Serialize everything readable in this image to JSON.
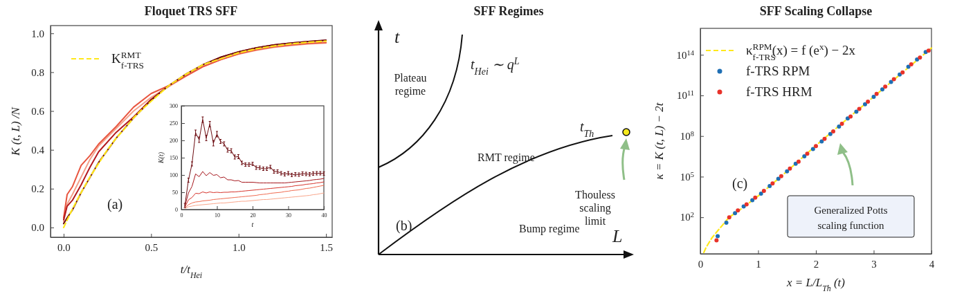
{
  "chart_data": [
    {
      "type": "line",
      "title": "Floquet TRS SFF",
      "xlabel": "t/t$_{Hei}$",
      "ylabel": "K (t, L) /N",
      "xlim": [
        -0.075,
        1.535
      ],
      "ylim": [
        -0.05,
        1.04
      ],
      "xticks": [
        {
          "value": 0,
          "label": "0.0"
        },
        {
          "value": 0.5,
          "label": "0.5"
        },
        {
          "value": 1,
          "label": "1.0"
        },
        {
          "value": 1.5,
          "label": "1.5"
        }
      ],
      "yticks": [
        {
          "value": 0,
          "label": "0.0"
        },
        {
          "value": 0.2,
          "label": "0.2"
        },
        {
          "value": 0.4,
          "label": "0.4"
        },
        {
          "value": 0.6,
          "label": "0.6"
        },
        {
          "value": 0.8,
          "label": "0.8"
        },
        {
          "value": 1,
          "label": "1.0"
        }
      ],
      "legend": "top left",
      "marker": "none",
      "grid": false,
      "annotations": [
        "(a)"
      ],
      "series": [
        {
          "color": "#f4a08a",
          "x": [
            0,
            0.02,
            0.05,
            0.1,
            0.15,
            0.2,
            0.3,
            0.4,
            0.5,
            0.6,
            0.7,
            0.8,
            0.9,
            1.0,
            1.1,
            1.2,
            1.3,
            1.4,
            1.5
          ],
          "values": [
            0.03,
            0.12,
            0.17,
            0.26,
            0.35,
            0.42,
            0.51,
            0.6,
            0.67,
            0.725,
            0.78,
            0.83,
            0.865,
            0.893,
            0.913,
            0.928,
            0.938,
            0.946,
            0.95
          ]
        },
        {
          "color": "#e8553f",
          "x": [
            0,
            0.02,
            0.05,
            0.1,
            0.15,
            0.2,
            0.3,
            0.4,
            0.5,
            0.6,
            0.7,
            0.8,
            0.9,
            1.0,
            1.1,
            1.2,
            1.3,
            1.4,
            1.5
          ],
          "values": [
            0.05,
            0.17,
            0.21,
            0.32,
            0.37,
            0.43,
            0.52,
            0.62,
            0.69,
            0.73,
            0.78,
            0.83,
            0.865,
            0.895,
            0.915,
            0.93,
            0.94,
            0.948,
            0.953
          ]
        },
        {
          "color": "#b3191e",
          "x": [
            0,
            0.02,
            0.05,
            0.1,
            0.15,
            0.2,
            0.3,
            0.4,
            0.5,
            0.6,
            0.7,
            0.8,
            0.9,
            1.0,
            1.1,
            1.2,
            1.3,
            1.4,
            1.5
          ],
          "values": [
            0.04,
            0.11,
            0.14,
            0.22,
            0.31,
            0.39,
            0.49,
            0.57,
            0.66,
            0.73,
            0.79,
            0.84,
            0.877,
            0.905,
            0.925,
            0.94,
            0.95,
            0.958,
            0.963
          ]
        },
        {
          "color": "#6b0a0f",
          "x": [
            0,
            0.02,
            0.05,
            0.1,
            0.2,
            0.3,
            0.4,
            0.5,
            0.6,
            0.7,
            0.8,
            0.9,
            1.0,
            1.1,
            1.2,
            1.3,
            1.4,
            1.5
          ],
          "values": [
            0.02,
            0.05,
            0.09,
            0.18,
            0.335,
            0.46,
            0.565,
            0.655,
            0.73,
            0.79,
            0.84,
            0.878,
            0.905,
            0.925,
            0.94,
            0.95,
            0.958,
            0.965
          ]
        },
        {
          "name": "K$_{f-TRS}$$^{RMT}$",
          "color": "#ffe81a",
          "line_style": "dashed",
          "x": [
            0,
            0.05,
            0.1,
            0.15,
            0.2,
            0.25,
            0.3,
            0.35,
            0.4,
            0.45,
            0.5,
            0.6,
            0.7,
            0.8,
            0.9,
            1.0,
            1.1,
            1.2,
            1.3,
            1.4,
            1.5
          ],
          "values": [
            0,
            0.095,
            0.18,
            0.26,
            0.33,
            0.4,
            0.46,
            0.51,
            0.565,
            0.61,
            0.65,
            0.73,
            0.79,
            0.84,
            0.87,
            0.9,
            0.92,
            0.935,
            0.946,
            0.954,
            0.96
          ]
        }
      ]
    },
    {
      "type": "line",
      "xlabel": "t",
      "ylabel": "K(t)",
      "xlim": [
        0,
        40
      ],
      "ylim": [
        0,
        300
      ],
      "xticks": [
        0,
        10,
        20,
        30,
        40
      ],
      "yticks": [
        0,
        50,
        100,
        150,
        200,
        250,
        300
      ],
      "grid": false,
      "x": [
        1,
        2,
        3,
        4,
        5,
        6,
        7,
        8,
        9,
        10,
        11,
        12,
        13,
        14,
        15,
        16,
        17,
        18,
        19,
        20,
        21,
        22,
        23,
        24,
        25,
        26,
        27,
        28,
        29,
        30,
        31,
        32,
        33,
        34,
        35,
        36,
        37,
        38,
        39,
        40
      ],
      "series": [
        {
          "color": "#f9a58a",
          "values": [
            3,
            8,
            10,
            12,
            13,
            14,
            15,
            16,
            17,
            18,
            19,
            19,
            20,
            21,
            22,
            23,
            24,
            24,
            25,
            26,
            27,
            28,
            29,
            29,
            30,
            31,
            32,
            33,
            34,
            35,
            36,
            37,
            38,
            39,
            40,
            41,
            43,
            44,
            46,
            48
          ]
        },
        {
          "color": "#f06a4f",
          "values": [
            5,
            14,
            19,
            22,
            23,
            25,
            26,
            27,
            29,
            30,
            31,
            32,
            33,
            34,
            35,
            36,
            37,
            38,
            39,
            40,
            41,
            43,
            44,
            45,
            47,
            48,
            49,
            50,
            52,
            53,
            55,
            56,
            57,
            59,
            61,
            62,
            64,
            66,
            68,
            70
          ]
        },
        {
          "color": "#d6322a",
          "values": [
            7,
            28,
            35,
            47,
            46,
            51,
            48,
            51,
            49,
            50,
            49,
            50,
            50,
            51,
            51,
            52,
            53,
            54,
            55,
            56,
            57,
            58,
            59,
            60,
            61,
            62,
            63,
            64,
            65,
            66,
            67,
            69,
            70,
            71,
            73,
            74,
            75,
            77,
            78,
            80
          ]
        },
        {
          "color": "#a5151b",
          "values": [
            10,
            48,
            67,
            103,
            95,
            110,
            98,
            107,
            99,
            101,
            92,
            94,
            86,
            86,
            83,
            84,
            79,
            79,
            79,
            79,
            78,
            77,
            77,
            77,
            77,
            77,
            77,
            77,
            77,
            78,
            79,
            80,
            81,
            82,
            83,
            84,
            86,
            87,
            88,
            90
          ]
        },
        {
          "color": "#6b0a0f",
          "values": [
            12,
            85,
            132,
            222,
            202,
            260,
            207,
            247,
            192,
            218,
            197,
            190,
            172,
            170,
            152,
            153,
            135,
            130,
            130,
            132,
            121,
            121,
            118,
            118,
            123,
            110,
            110,
            105,
            102,
            105,
            100,
            102,
            101,
            104,
            103,
            102,
            104,
            105,
            105,
            104
          ],
          "errors": [
            6,
            6,
            6,
            8,
            8,
            8,
            8,
            8,
            8,
            8,
            6,
            6,
            6,
            6,
            6,
            6,
            5,
            5,
            5,
            5,
            5,
            5,
            5,
            5,
            5,
            5,
            5,
            5,
            5,
            5,
            5,
            5,
            5,
            5,
            5,
            5,
            5,
            5,
            5,
            5
          ]
        }
      ]
    },
    {
      "type": "other",
      "title": "SFF Regimes",
      "annotations": [
        "t",
        "t$_{Hei}$ ∼ q$^{L}$",
        "Plateau regime",
        "RMT regime",
        "t$_{Th}$",
        "Thouless scaling limit",
        "(b)",
        "Bump regime",
        "L"
      ]
    },
    {
      "type": "scatter",
      "title": "SFF Scaling Collapse",
      "xlabel": "x = L/L$_{Th}$ (t)",
      "ylabel": "κ = K (t, L) − 2t",
      "log": "y",
      "xlim": [
        0,
        4
      ],
      "ylim": [
        0.2,
        9000000000000000.0
      ],
      "xticks": [
        0,
        1,
        2,
        3,
        4
      ],
      "yticks": [
        {
          "value": 100.0,
          "label": "10$^{2}$"
        },
        {
          "value": 100000.0,
          "label": "10$^{5}$"
        },
        {
          "value": 100000000.0,
          "label": "10$^{8}$"
        },
        {
          "value": 100000000000.0,
          "label": "10$^{11}$"
        },
        {
          "value": 100000000000000.0,
          "label": "10$^{14}$"
        }
      ],
      "legend": "top left",
      "grid": false,
      "marker": "circle",
      "annotations": [
        "(c)",
        "Generalized Potts scaling function"
      ],
      "series": [
        {
          "name": "κ$_{f-TRS}$$^{RPM}$(x) = f (e$^{x}$) − 2x",
          "type": "line",
          "marker": "none",
          "line_style": "dashed",
          "color": "#ffe81a",
          "x": [
            0.06,
            0.1,
            0.2,
            0.3,
            0.4,
            0.5,
            0.75,
            1,
            1.5,
            2,
            2.5,
            3,
            3.5,
            4
          ],
          "values": [
            0.25,
            0.6,
            3,
            10,
            32,
            100,
            560,
            3700,
            250000.0,
            20000000.0,
            1300000000.0,
            80000000000.0,
            5000000000000.0,
            320000000000000.0
          ]
        },
        {
          "name": "f-TRS RPM",
          "color": "#1f6fb4",
          "x": [
            0.3,
            0.45,
            0.6,
            0.75,
            0.9,
            1.05,
            1.2,
            1.35,
            1.5,
            1.65,
            1.8,
            1.95,
            2.1,
            2.25,
            2.4,
            2.55,
            2.7,
            2.85,
            3.0,
            3.15,
            3.3,
            3.45,
            3.6,
            3.75,
            3.9
          ],
          "values": [
            4,
            40,
            200,
            630,
            1800,
            5600,
            20000.0,
            70000.0,
            250000.0,
            900000.0,
            3200000.0,
            11000000.0,
            40000000.0,
            140000000.0,
            500000000.0,
            2000000000.0,
            6300000000.0,
            22000000000.0,
            80000000000.0,
            280000000000.0,
            1000000000000.0,
            3500000000000.0,
            13000000000000.0,
            45000000000000.0,
            160000000000000.0
          ]
        },
        {
          "name": "f-TRS HRM",
          "color": "#e8322a",
          "x": [
            0.28,
            0.5,
            0.65,
            0.8,
            0.95,
            1.1,
            1.25,
            1.4,
            1.55,
            1.7,
            1.85,
            2.0,
            2.15,
            2.3,
            2.45,
            2.6,
            2.75,
            2.9,
            3.05,
            3.2,
            3.35,
            3.5,
            3.65,
            3.8,
            3.95
          ],
          "values": [
            2,
            100,
            320,
            900,
            2800,
            9000,
            32000.0,
            110000.0,
            400000.0,
            1300000.0,
            5000000.0,
            18000000.0,
            63000000.0,
            220000000.0,
            800000000.0,
            2800000000.0,
            10000000000.0,
            35000000000.0,
            130000000000.0,
            450000000000.0,
            1600000000000.0,
            5000000000000.0,
            20000000000000.0,
            63000000000000.0,
            200000000000000.0
          ]
        }
      ]
    }
  ]
}
